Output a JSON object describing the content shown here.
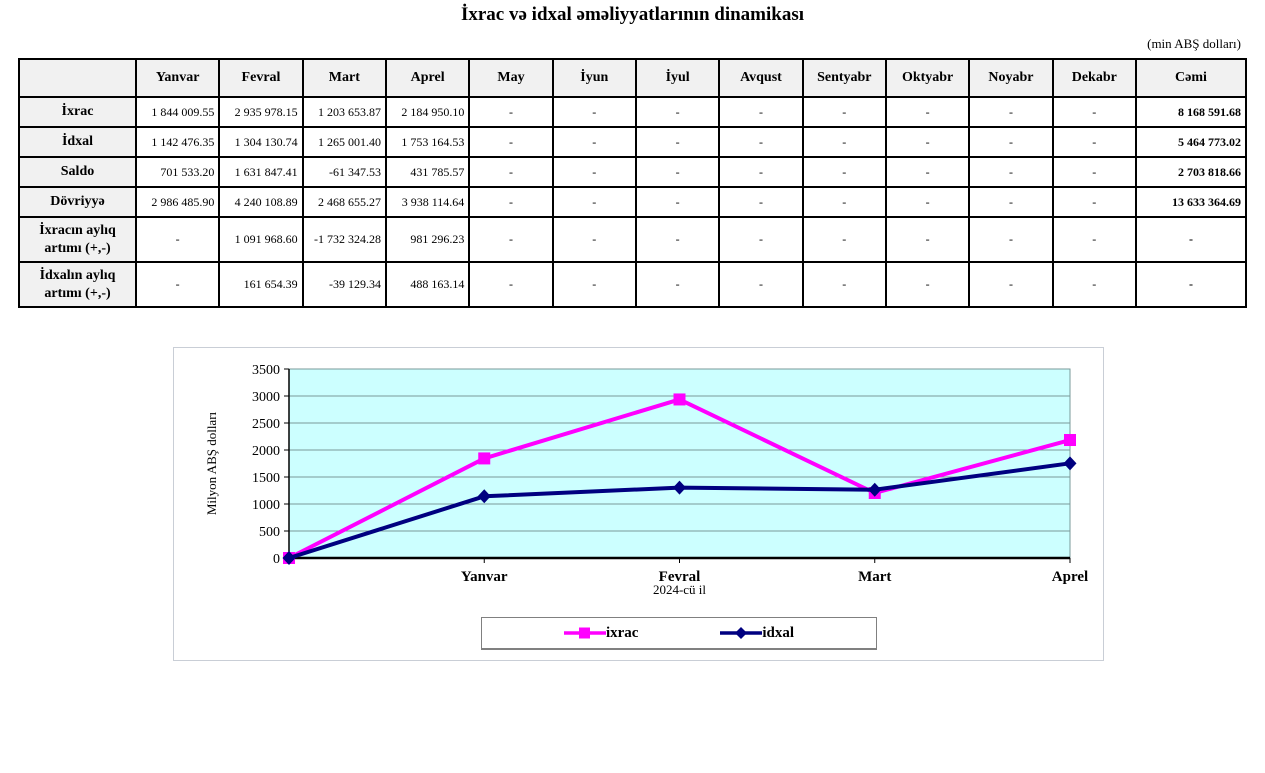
{
  "title": "İxrac və idxal əməliyyatlarının dinamikası",
  "unit_note": "(min ABŞ dolları)",
  "table": {
    "columns": [
      "Yanvar",
      "Fevral",
      "Mart",
      "Aprel",
      "May",
      "İyun",
      "İyul",
      "Avqust",
      "Sentyabr",
      "Oktyabr",
      "Noyabr",
      "Dekabr",
      "Cəmi"
    ],
    "rows": [
      {
        "label": "İxrac",
        "values": [
          "1 844 009.55",
          "2 935 978.15",
          "1 203 653.87",
          "2 184 950.10",
          "-",
          "-",
          "-",
          "-",
          "-",
          "-",
          "-",
          "-",
          "8 168 591.68"
        ]
      },
      {
        "label": "İdxal",
        "values": [
          "1 142 476.35",
          "1 304 130.74",
          "1 265 001.40",
          "1 753 164.53",
          "-",
          "-",
          "-",
          "-",
          "-",
          "-",
          "-",
          "-",
          "5 464 773.02"
        ]
      },
      {
        "label": "Saldo",
        "values": [
          "701 533.20",
          "1 631 847.41",
          "-61 347.53",
          "431 785.57",
          "-",
          "-",
          "-",
          "-",
          "-",
          "-",
          "-",
          "-",
          "2 703 818.66"
        ]
      },
      {
        "label": "Dövriyyə",
        "values": [
          "2 986 485.90",
          "4 240 108.89",
          "2 468 655.27",
          "3 938 114.64",
          "-",
          "-",
          "-",
          "-",
          "-",
          "-",
          "-",
          "-",
          "13 633 364.69"
        ]
      },
      {
        "label": "İxracın aylıq artımı (+,-)",
        "values": [
          "-",
          "1 091 968.60",
          "-1 732 324.28",
          "981 296.23",
          "-",
          "-",
          "-",
          "-",
          "-",
          "-",
          "-",
          "-",
          "-"
        ]
      },
      {
        "label": "İdxalın aylıq artımı (+,-)",
        "values": [
          "-",
          "161 654.39",
          "-39 129.34",
          "488 163.14",
          "-",
          "-",
          "-",
          "-",
          "-",
          "-",
          "-",
          "-",
          "-"
        ]
      }
    ]
  },
  "chart_data": {
    "type": "line",
    "x": [
      "",
      "Yanvar",
      "Fevral",
      "Mart",
      "Aprel"
    ],
    "series": [
      {
        "name": "ixrac",
        "color": "#FF00FF",
        "marker": "square",
        "values": [
          0,
          1844.01,
          2935.98,
          1203.65,
          2184.95
        ]
      },
      {
        "name": "idxal",
        "color": "#000080",
        "marker": "diamond",
        "values": [
          0,
          1142.48,
          1304.13,
          1265.0,
          1753.16
        ]
      }
    ],
    "ylabel": "Milyon ABŞ dolları",
    "xlabel": "2024-cü il",
    "ylim": [
      0,
      3500
    ],
    "ytick_step": 500,
    "plot_bg": "#CCFFFF",
    "grid": true,
    "legend_position": "bottom"
  },
  "colors": {
    "grid_line": "#7a9999",
    "axis": "#000000",
    "header_bg": "#f1f1f1",
    "chart_frame_border": "#c9ced6"
  }
}
